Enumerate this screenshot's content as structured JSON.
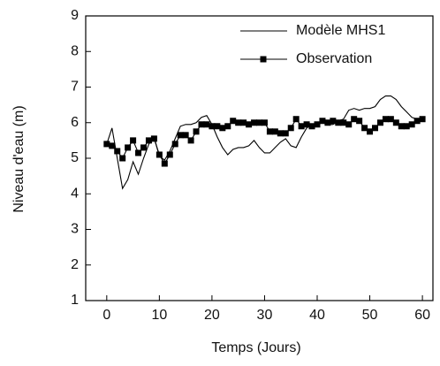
{
  "chart_data": {
    "type": "line",
    "x_label": "Temps (Jours)",
    "y_label": "Niveau d'eau (m)",
    "x": [
      0,
      1,
      2,
      3,
      4,
      5,
      6,
      7,
      8,
      9,
      10,
      11,
      12,
      13,
      14,
      15,
      16,
      17,
      18,
      19,
      20,
      21,
      22,
      23,
      24,
      25,
      26,
      27,
      28,
      29,
      30,
      31,
      32,
      33,
      34,
      35,
      36,
      37,
      38,
      39,
      40,
      41,
      42,
      43,
      44,
      45,
      46,
      47,
      48,
      49,
      50,
      51,
      52,
      53,
      54,
      55,
      56,
      57,
      58,
      59,
      60
    ],
    "series": [
      {
        "name": "Modèle MHS1",
        "color": "#000000",
        "marker": "none",
        "values": [
          5.4,
          5.85,
          5.0,
          4.15,
          4.4,
          4.9,
          4.55,
          5.0,
          5.4,
          5.6,
          5.05,
          4.95,
          5.2,
          5.55,
          5.9,
          5.95,
          5.95,
          6.0,
          6.15,
          6.2,
          5.95,
          5.6,
          5.3,
          5.1,
          5.25,
          5.3,
          5.3,
          5.35,
          5.5,
          5.3,
          5.15,
          5.15,
          5.3,
          5.45,
          5.55,
          5.35,
          5.3,
          5.6,
          5.85,
          5.95,
          5.95,
          6.0,
          5.95,
          5.95,
          6.05,
          6.1,
          6.35,
          6.4,
          6.35,
          6.4,
          6.4,
          6.45,
          6.65,
          6.75,
          6.75,
          6.65,
          6.45,
          6.3,
          6.15,
          6.1,
          null
        ]
      },
      {
        "name": "Observation",
        "color": "#000000",
        "marker": "square",
        "values": [
          5.4,
          5.35,
          5.2,
          5.0,
          5.3,
          5.5,
          5.15,
          5.3,
          5.5,
          5.55,
          5.1,
          4.85,
          5.1,
          5.4,
          5.65,
          5.65,
          5.5,
          5.75,
          5.95,
          5.95,
          5.9,
          5.9,
          5.85,
          5.9,
          6.05,
          6.0,
          6.0,
          5.95,
          6.0,
          6.0,
          6.0,
          5.75,
          5.75,
          5.7,
          5.7,
          5.85,
          6.1,
          5.9,
          5.95,
          5.9,
          5.95,
          6.05,
          6.0,
          6.05,
          6.0,
          6.0,
          5.95,
          6.1,
          6.05,
          5.85,
          5.75,
          5.85,
          6.0,
          6.1,
          6.1,
          6.0,
          5.9,
          5.9,
          5.95,
          6.05,
          6.1
        ]
      }
    ],
    "xlim": [
      -4,
      62
    ],
    "ylim": [
      1,
      9
    ],
    "xticks": [
      0,
      10,
      20,
      30,
      40,
      50,
      60
    ],
    "yticks": [
      1,
      2,
      3,
      4,
      5,
      6,
      7,
      8,
      9
    ],
    "legend": "upper right"
  }
}
